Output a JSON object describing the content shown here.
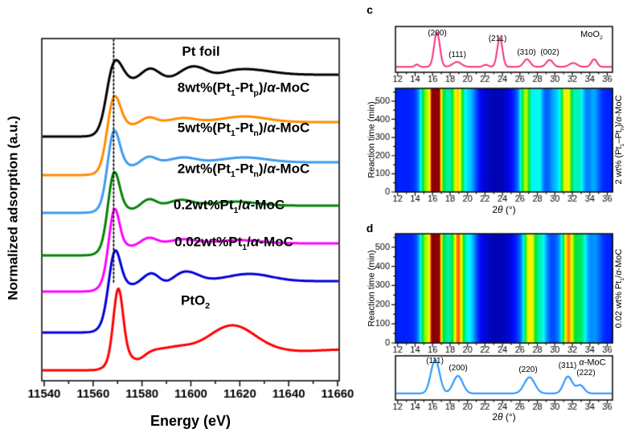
{
  "panel_letters": {
    "c": "c",
    "d": "d"
  },
  "axes": {
    "energy_label": "Energy (eV)",
    "normalized_label": "Normalized adsorption (a.u.)",
    "reaction_time_label": "Reaction time (min)",
    "two_theta_rich": [
      {
        "t": "2"
      },
      {
        "t": "θ",
        "i": true
      },
      {
        "t": " (°)"
      }
    ]
  },
  "chart_data": [
    {
      "id": "xanes",
      "type": "line",
      "xlabel": "Energy (eV)",
      "ylabel": "Normalized adsorption (a.u.)",
      "x_range": [
        11540,
        11660
      ],
      "x_ticks": [
        11540,
        11560,
        11580,
        11600,
        11620,
        11640,
        11660
      ],
      "x_minor_step": 10,
      "dotted_line_energy": 11568.4,
      "series": [
        {
          "name": "Pt foil",
          "color": "#000000",
          "base": 170,
          "edge_center": 11565.8,
          "edge_width": 1.6,
          "edge_jump": 77,
          "whiteline": [
            11568.2,
            28,
            3.0
          ],
          "osc": [
            [
              11576,
              -5,
              2.8
            ],
            [
              11583.5,
              8,
              3
            ],
            [
              11592,
              -4,
              3.5
            ],
            [
              11601,
              10,
              5
            ],
            [
              11610,
              -3,
              4
            ],
            [
              11622,
              7,
              10
            ]
          ],
          "label_rich": [
            {
              "t": "Pt foil"
            }
          ]
        },
        {
          "name": "8wt%(Pt1-Ptp)/a-MoC",
          "color": "#FF8C00",
          "base": 218,
          "edge_center": 11565.8,
          "edge_width": 1.6,
          "edge_jump": 66,
          "whiteline": [
            11568.3,
            42,
            2.5
          ],
          "osc": [
            [
              11576,
              -3,
              2.5
            ],
            [
              11583,
              6,
              2.8
            ],
            [
              11597,
              5,
              5
            ],
            [
              11622,
              7,
              9
            ]
          ],
          "label_rich": [
            {
              "t": "8wt%(Pt"
            },
            {
              "t": "1",
              "sub": true
            },
            {
              "t": "-Pt"
            },
            {
              "t": "p",
              "sub": true
            },
            {
              "t": ")/"
            },
            {
              "t": "α",
              "i": true
            },
            {
              "t": "-MoC"
            }
          ]
        },
        {
          "name": "5wt%(Pt1-Ptn)/a-MoC",
          "color": "#3E9BF0",
          "base": 265,
          "edge_center": 11565.8,
          "edge_width": 1.6,
          "edge_jump": 63,
          "whiteline": [
            11568.3,
            49,
            2.3
          ],
          "osc": [
            [
              11576,
              -4,
              2.5
            ],
            [
              11583,
              7,
              2.8
            ],
            [
              11597,
              6,
              5
            ],
            [
              11622,
              6,
              9
            ]
          ],
          "label_rich": [
            {
              "t": "5wt%(Pt"
            },
            {
              "t": "1",
              "sub": true
            },
            {
              "t": "-Pt"
            },
            {
              "t": "n",
              "sub": true
            },
            {
              "t": ")/"
            },
            {
              "t": "α",
              "i": true
            },
            {
              "t": "-MoC"
            }
          ]
        },
        {
          "name": "2wt%(Pt1-Ptn)/a-MoC",
          "color": "#058205",
          "base": 318,
          "edge_center": 11565.8,
          "edge_width": 1.6,
          "edge_jump": 62,
          "whiteline": [
            11568.4,
            51,
            2.2
          ],
          "osc": [
            [
              11576,
              -4,
              2.5
            ],
            [
              11583,
              8,
              2.8
            ],
            [
              11596,
              7,
              4.5
            ],
            [
              11618,
              5,
              9
            ]
          ],
          "label_rich": [
            {
              "t": "2wt%(Pt"
            },
            {
              "t": "1",
              "sub": true
            },
            {
              "t": "-Pt"
            },
            {
              "t": "n",
              "sub": true
            },
            {
              "t": ")/"
            },
            {
              "t": "α",
              "i": true
            },
            {
              "t": "-MoC"
            }
          ]
        },
        {
          "name": "0.2wt%Pt1/a-MoC",
          "color": "#FF00FF",
          "base": 363,
          "edge_center": 11565.8,
          "edge_width": 1.6,
          "edge_jump": 60,
          "whiteline": [
            11568.6,
            51,
            2.0
          ],
          "osc": [
            [
              11576,
              -3,
              2.5
            ],
            [
              11583,
              7,
              3
            ],
            [
              11597,
              5,
              5
            ],
            [
              11620,
              4,
              9
            ]
          ],
          "label_rich": [
            {
              "t": "0.2wt%Pt"
            },
            {
              "t": "1",
              "sub": true
            },
            {
              "t": "/"
            },
            {
              "t": "α",
              "i": true
            },
            {
              "t": "-MoC"
            }
          ]
        },
        {
          "name": "0.02wt%Pt1/a-MoC",
          "color": "#0000DC",
          "base": 414,
          "edge_center": 11565.8,
          "edge_width": 1.6,
          "edge_jump": 64,
          "whiteline": [
            11568.8,
            46,
            2.2
          ],
          "osc": [
            [
              11576,
              -4,
              2.5
            ],
            [
              11584,
              10,
              3
            ],
            [
              11590,
              -4,
              3
            ],
            [
              11598,
              12,
              5
            ],
            [
              11624,
              9,
              9
            ]
          ],
          "label_rich": [
            {
              "t": "0.02wt%Pt"
            },
            {
              "t": "1",
              "sub": true
            },
            {
              "t": "/"
            },
            {
              "t": "α",
              "i": true
            },
            {
              "t": "-MoC"
            }
          ]
        },
        {
          "name": "PtO2",
          "color": "#FF0000",
          "base": 461,
          "edge_center": 11566.8,
          "edge_width": 1.6,
          "edge_jump": 26,
          "whiteline": [
            11570.3,
            79,
            1.9
          ],
          "osc": [
            [
              11578,
              -12,
              3.2
            ],
            [
              11595,
              3,
              5
            ],
            [
              11617,
              30,
              9
            ],
            [
              11645,
              -2,
              8
            ]
          ],
          "label_rich": [
            {
              "t": "PtO"
            },
            {
              "t": "2",
              "sub": true
            }
          ]
        }
      ]
    },
    {
      "id": "moo2_pattern",
      "type": "line",
      "label": "MoO2",
      "label_rich": [
        {
          "t": "MoO"
        },
        {
          "t": "2",
          "sub": true
        }
      ],
      "color": "#F3317E",
      "x_ticks": [
        12,
        14,
        16,
        18,
        20,
        22,
        24,
        26,
        28,
        30,
        32,
        34,
        36
      ],
      "baseline": 0.03,
      "peaks": [
        [
          14.2,
          0.07,
          0.22
        ],
        [
          16.5,
          1.0,
          0.33
        ],
        [
          18.8,
          0.14,
          0.5
        ],
        [
          22.1,
          0.06,
          0.3
        ],
        [
          23.7,
          0.84,
          0.3
        ],
        [
          26.8,
          0.22,
          0.38
        ],
        [
          29.4,
          0.2,
          0.38
        ],
        [
          32.1,
          0.11,
          0.45
        ],
        [
          34.5,
          0.22,
          0.32
        ]
      ],
      "peak_labels": [
        "(200)",
        "(111)",
        "(211)",
        "(310)",
        "(002)"
      ]
    },
    {
      "id": "heatmap_c",
      "type": "heatmap",
      "ylabel": "Reaction time (min)",
      "right_label": "2 wt% (Pt1-Ptn)/a-MoC",
      "right_label_rich": [
        {
          "t": "2 wt% (Pt"
        },
        {
          "t": "1",
          "sub": true
        },
        {
          "t": "–Pt"
        },
        {
          "t": "n",
          "sub": true
        },
        {
          "t": ")/"
        },
        {
          "t": "α",
          "i": true
        },
        {
          "t": "-MoC"
        }
      ],
      "x_ticks": [
        12,
        14,
        16,
        18,
        20,
        22,
        24,
        26,
        28,
        30,
        32,
        34,
        36
      ],
      "y_ticks": [
        0,
        100,
        200,
        300,
        400,
        500
      ],
      "y_max": 570,
      "base": 0.13,
      "dip": [
        23.4,
        -0.09,
        2.0
      ],
      "peaks": [
        [
          15.0,
          0.25,
          0.45
        ],
        [
          16.3,
          0.85,
          0.33
        ],
        [
          16.3,
          0.55,
          0.95
        ],
        [
          18.85,
          0.33,
          0.4
        ],
        [
          18.85,
          0.32,
          0.9
        ],
        [
          20.4,
          0.15,
          0.5
        ],
        [
          26.6,
          0.38,
          0.45
        ],
        [
          26.6,
          0.18,
          0.95
        ],
        [
          28.1,
          0.24,
          0.45
        ],
        [
          29.8,
          0.12,
          0.5
        ],
        [
          31.3,
          0.42,
          0.45
        ],
        [
          31.3,
          0.22,
          0.95
        ],
        [
          32.8,
          0.25,
          0.5
        ],
        [
          34.4,
          0.18,
          0.5
        ]
      ]
    },
    {
      "id": "heatmap_d",
      "type": "heatmap",
      "ylabel": "Reaction time (min)",
      "right_label": "0.02 wt% Pt1/a-MoC",
      "right_label_rich": [
        {
          "t": "0.02 wt% Pt"
        },
        {
          "t": "1",
          "sub": true
        },
        {
          "t": "/"
        },
        {
          "t": "α",
          "i": true
        },
        {
          "t": "-MoC"
        }
      ],
      "x_ticks": [
        12,
        14,
        16,
        18,
        20,
        22,
        24,
        26,
        28,
        30,
        32,
        34,
        36
      ],
      "y_ticks": [
        0,
        100,
        200,
        300,
        400,
        500
      ],
      "y_max": 570,
      "base": 0.13,
      "dip": [
        23.5,
        -0.09,
        2.0
      ],
      "peaks": [
        [
          15.0,
          0.27,
          0.45
        ],
        [
          16.3,
          0.9,
          0.33
        ],
        [
          16.3,
          0.55,
          0.95
        ],
        [
          18.9,
          0.38,
          0.4
        ],
        [
          18.9,
          0.35,
          0.9
        ],
        [
          20.4,
          0.17,
          0.5
        ],
        [
          27.1,
          0.45,
          0.5
        ],
        [
          27.1,
          0.2,
          1.0
        ],
        [
          28.5,
          0.22,
          0.5
        ],
        [
          31.5,
          0.45,
          0.45
        ],
        [
          31.5,
          0.25,
          0.95
        ],
        [
          33.0,
          0.3,
          0.6
        ],
        [
          34.6,
          0.14,
          0.5
        ]
      ]
    },
    {
      "id": "amoc_pattern",
      "type": "line",
      "label": "a-MoC",
      "label_rich": [
        {
          "t": "α",
          "i": true
        },
        {
          "t": "-MoC"
        }
      ],
      "color": "#1E90FF",
      "x_ticks": [
        12,
        14,
        16,
        18,
        20,
        22,
        24,
        26,
        28,
        30,
        32,
        34,
        36
      ],
      "baseline": 0.04,
      "peaks": [
        [
          16.3,
          1.0,
          0.5
        ],
        [
          18.9,
          0.52,
          0.55
        ],
        [
          27.1,
          0.48,
          0.6
        ],
        [
          31.5,
          0.5,
          0.5
        ],
        [
          32.9,
          0.24,
          0.45
        ]
      ],
      "peak_labels": [
        "(111)",
        "(200)",
        "(220)",
        "(311)",
        "(222)"
      ]
    }
  ]
}
